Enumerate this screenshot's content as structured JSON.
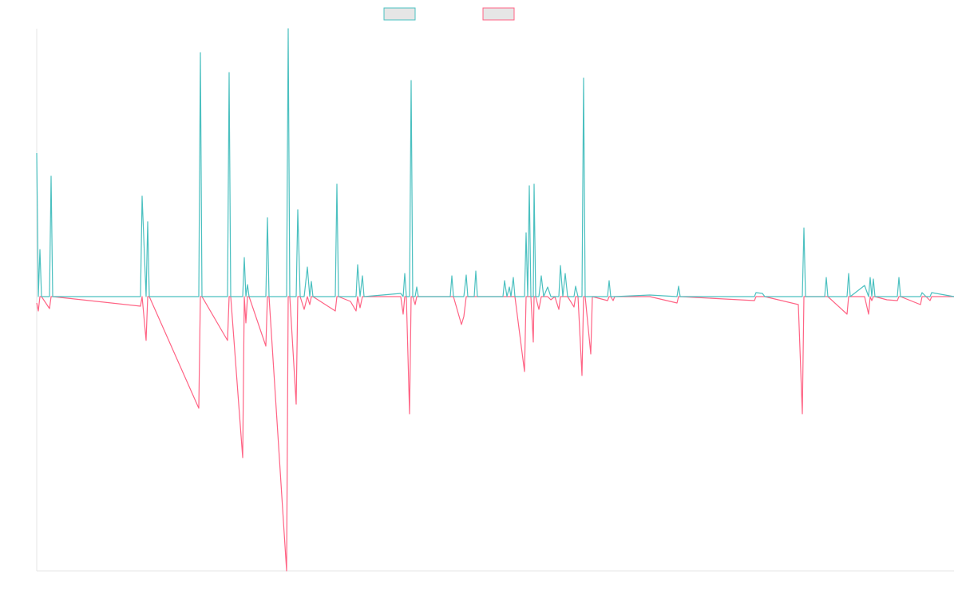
{
  "chart_data": {
    "type": "line",
    "x": [
      0,
      2,
      4,
      6,
      16,
      18,
      20,
      130,
      132,
      137,
      139,
      141,
      203,
      205,
      207,
      239,
      241,
      243,
      258,
      260,
      262,
      264,
      266,
      287,
      289,
      291,
      313,
      315,
      317,
      325,
      327,
      330,
      335,
      339,
      342,
      344,
      346,
      374,
      376,
      378,
      393,
      400,
      402,
      405,
      408,
      410,
      456,
      459,
      461,
      463,
      467,
      469,
      471,
      474,
      476,
      478,
      518,
      520,
      522,
      532,
      535,
      538,
      540,
      548,
      550,
      552,
      584,
      586,
      589,
      592,
      594,
      597,
      599,
      611,
      613,
      615,
      617,
      619,
      622,
      623,
      625,
      629,
      632,
      635,
      640,
      644,
      649,
      654,
      656,
      659,
      662,
      665,
      673,
      675,
      678,
      683,
      685,
      687,
      694,
      696,
      715,
      717,
      719,
      722,
      724,
      768,
      802,
      804,
      806,
      899,
      901,
      909,
      912,
      954,
      959,
      961,
      963,
      987,
      989,
      991,
      1015,
      1017,
      1019,
      1037,
      1042,
      1044,
      1046,
      1048,
      1050,
      1065,
      1078,
      1080,
      1082,
      1107,
      1109,
      1114,
      1119,
      1121,
      1149
    ],
    "series": [
      {
        "color": "#4bc0c0",
        "values": [
          180,
          0,
          59,
          0,
          0,
          151,
          0,
          0,
          126,
          0,
          94,
          0,
          0,
          306,
          0,
          0,
          281,
          0,
          0,
          49,
          0,
          15,
          0,
          0,
          99,
          0,
          0,
          336,
          0,
          0,
          109,
          0,
          0,
          37,
          0,
          19,
          0,
          0,
          141,
          0,
          0,
          0,
          40,
          0,
          26,
          0,
          4,
          0,
          29,
          0,
          0,
          271,
          0,
          0,
          12,
          0,
          0,
          26,
          0,
          0,
          0,
          27,
          0,
          0,
          32,
          0,
          0,
          20,
          0,
          12,
          0,
          24,
          0,
          0,
          80,
          0,
          139,
          0,
          0,
          141,
          0,
          0,
          26,
          0,
          12,
          0,
          0,
          0,
          39,
          0,
          29,
          0,
          0,
          13,
          0,
          0,
          274,
          0,
          0,
          0,
          0,
          20,
          0,
          0,
          0,
          2,
          0,
          13,
          0,
          0,
          5,
          4,
          0,
          0,
          0,
          86,
          0,
          0,
          24,
          0,
          0,
          29,
          0,
          14,
          0,
          24,
          0,
          22,
          0,
          0,
          0,
          24,
          0,
          0,
          5,
          0,
          0,
          5,
          0
        ]
      },
      {
        "color": "#ff6384",
        "values": [
          -8,
          -18,
          0,
          0,
          -15,
          0,
          0,
          -12,
          0,
          -55,
          0,
          0,
          -140,
          0,
          0,
          -55,
          0,
          0,
          -202,
          0,
          -33,
          0,
          0,
          -62,
          0,
          0,
          -344,
          0,
          0,
          -135,
          0,
          0,
          -16,
          0,
          -10,
          0,
          0,
          -18,
          0,
          0,
          -6,
          -18,
          0,
          -14,
          0,
          0,
          0,
          -22,
          0,
          0,
          -147,
          0,
          0,
          -10,
          0,
          0,
          0,
          0,
          0,
          -35,
          -25,
          0,
          0,
          0,
          0,
          0,
          0,
          0,
          0,
          0,
          0,
          0,
          0,
          -94,
          0,
          0,
          0,
          0,
          -57,
          0,
          0,
          -16,
          0,
          0,
          0,
          -4,
          0,
          -16,
          0,
          0,
          0,
          0,
          -13,
          0,
          0,
          -99,
          0,
          0,
          -72,
          0,
          -5,
          0,
          0,
          -5,
          0,
          0,
          -8,
          0,
          0,
          -5,
          0,
          0,
          0,
          -10,
          -147,
          0,
          0,
          0,
          0,
          0,
          -22,
          0,
          0,
          0,
          -22,
          0,
          -5,
          0,
          0,
          -4,
          -5,
          0,
          0,
          -10,
          0,
          0,
          -5,
          0,
          0
        ]
      }
    ],
    "xlim": [
      0,
      1149
    ],
    "ylim": [
      -344,
      336
    ]
  }
}
